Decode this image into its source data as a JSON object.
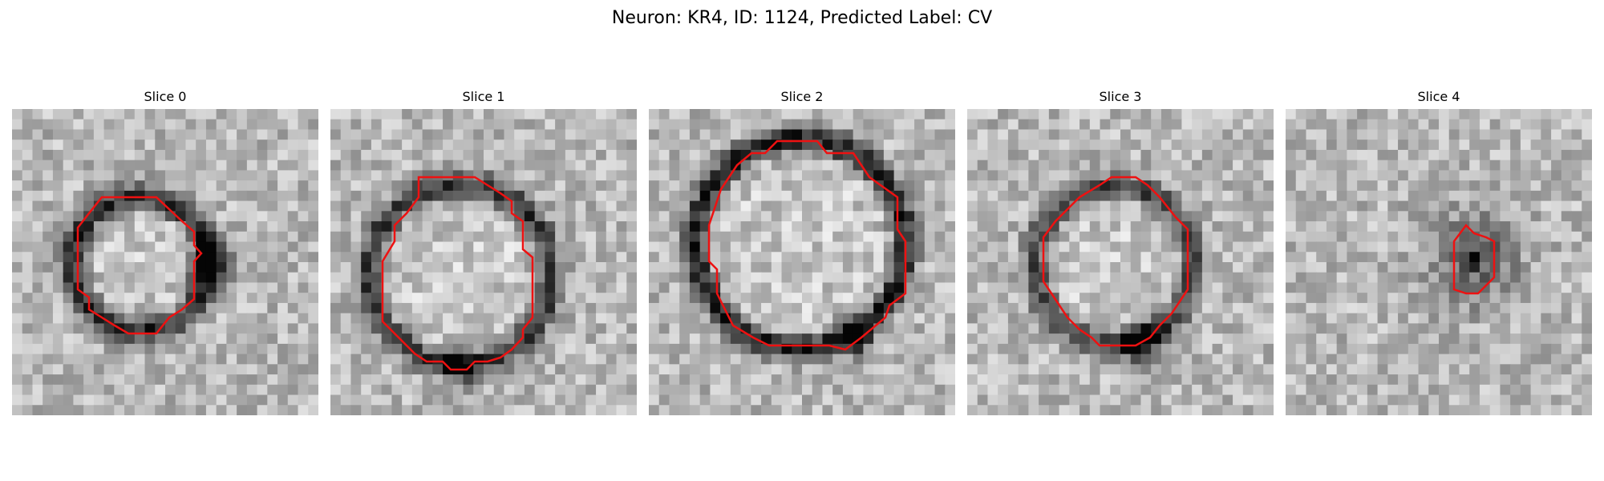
{
  "figure": {
    "title": "Neuron: KR4, ID: 1124, Predicted Label: CV",
    "contour_color": "#ee1111",
    "panels": [
      {
        "title": "Slice 0",
        "ring_strength": 0.55,
        "dark_blob": {
          "angle_deg": 0,
          "strength": 0.8
        }
      },
      {
        "title": "Slice 1",
        "ring_strength": 0.5,
        "dark_blob": {
          "angle_deg": 270,
          "strength": 0.4
        }
      },
      {
        "title": "Slice 2",
        "ring_strength": 0.6,
        "dark_blob": {
          "angle_deg": 300,
          "strength": 0.5
        }
      },
      {
        "title": "Slice 3",
        "ring_strength": 0.45,
        "dark_blob": {
          "angle_deg": 290,
          "strength": 0.6
        }
      },
      {
        "title": "Slice 4",
        "ring_strength": 0.0,
        "dark_blob": {
          "angle_deg": 0,
          "strength": 0.0
        }
      }
    ]
  }
}
